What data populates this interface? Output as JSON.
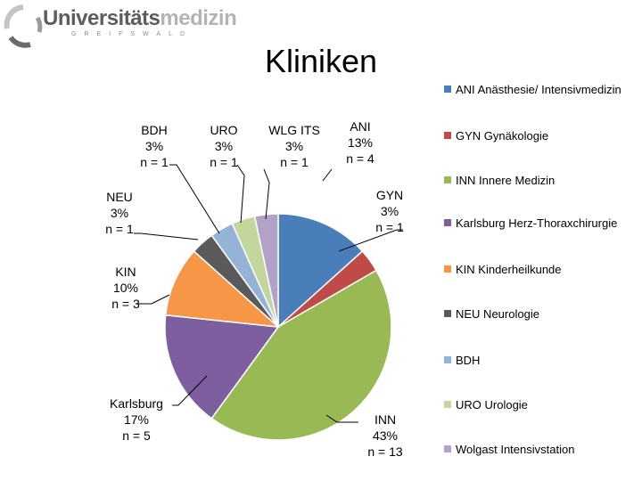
{
  "logo": {
    "name_part1": "Universitäts",
    "name_part2": "medizin",
    "subline": "GREIFSWALD"
  },
  "chart_data": {
    "type": "pie",
    "title": "Kliniken",
    "legend_position": "right",
    "start_angle": "12 o'clock, clockwise",
    "slices": [
      {
        "key": "ANI",
        "label": "ANI",
        "legend": "ANI Anästhesie/ Intensivmedizin",
        "percent_label": "13%",
        "n_label": "n = 4",
        "value": 4,
        "color": "#4a7ebb"
      },
      {
        "key": "GYN",
        "label": "GYN",
        "legend": "GYN Gynäkologie",
        "percent_label": "3%",
        "n_label": "n = 1",
        "value": 1,
        "color": "#be4b48"
      },
      {
        "key": "INN",
        "label": "INN",
        "legend": "INN Innere Medizin",
        "percent_label": "43%",
        "n_label": "n = 13",
        "value": 13,
        "color": "#98b954"
      },
      {
        "key": "Karlsburg",
        "label": "Karlsburg",
        "legend": "Karlsburg Herz-Thoraxchirurgie",
        "percent_label": "17%",
        "n_label": "n = 5",
        "value": 5,
        "color": "#7d5fa0"
      },
      {
        "key": "KIN",
        "label": "KIN",
        "legend": "KIN Kinderheilkunde",
        "percent_label": "10%",
        "n_label": "n = 3",
        "value": 3,
        "color": "#f79646"
      },
      {
        "key": "NEU",
        "label": "NEU",
        "legend": "NEU Neurologie",
        "percent_label": "3%",
        "n_label": "n = 1",
        "value": 1,
        "color": "#5a5a5a"
      },
      {
        "key": "BDH",
        "label": "BDH",
        "legend": "BDH",
        "percent_label": "3%",
        "n_label": "n = 1",
        "value": 1,
        "color": "#95b3d7"
      },
      {
        "key": "URO",
        "label": "URO",
        "legend": "URO Urologie",
        "percent_label": "3%",
        "n_label": "n = 1",
        "value": 1,
        "color": "#c3d69b"
      },
      {
        "key": "WLG",
        "label": "WLG ITS",
        "legend": "Wolgast Intensivstation",
        "percent_label": "3%",
        "n_label": "n = 1",
        "value": 1,
        "color": "#b2a2c7"
      }
    ]
  }
}
